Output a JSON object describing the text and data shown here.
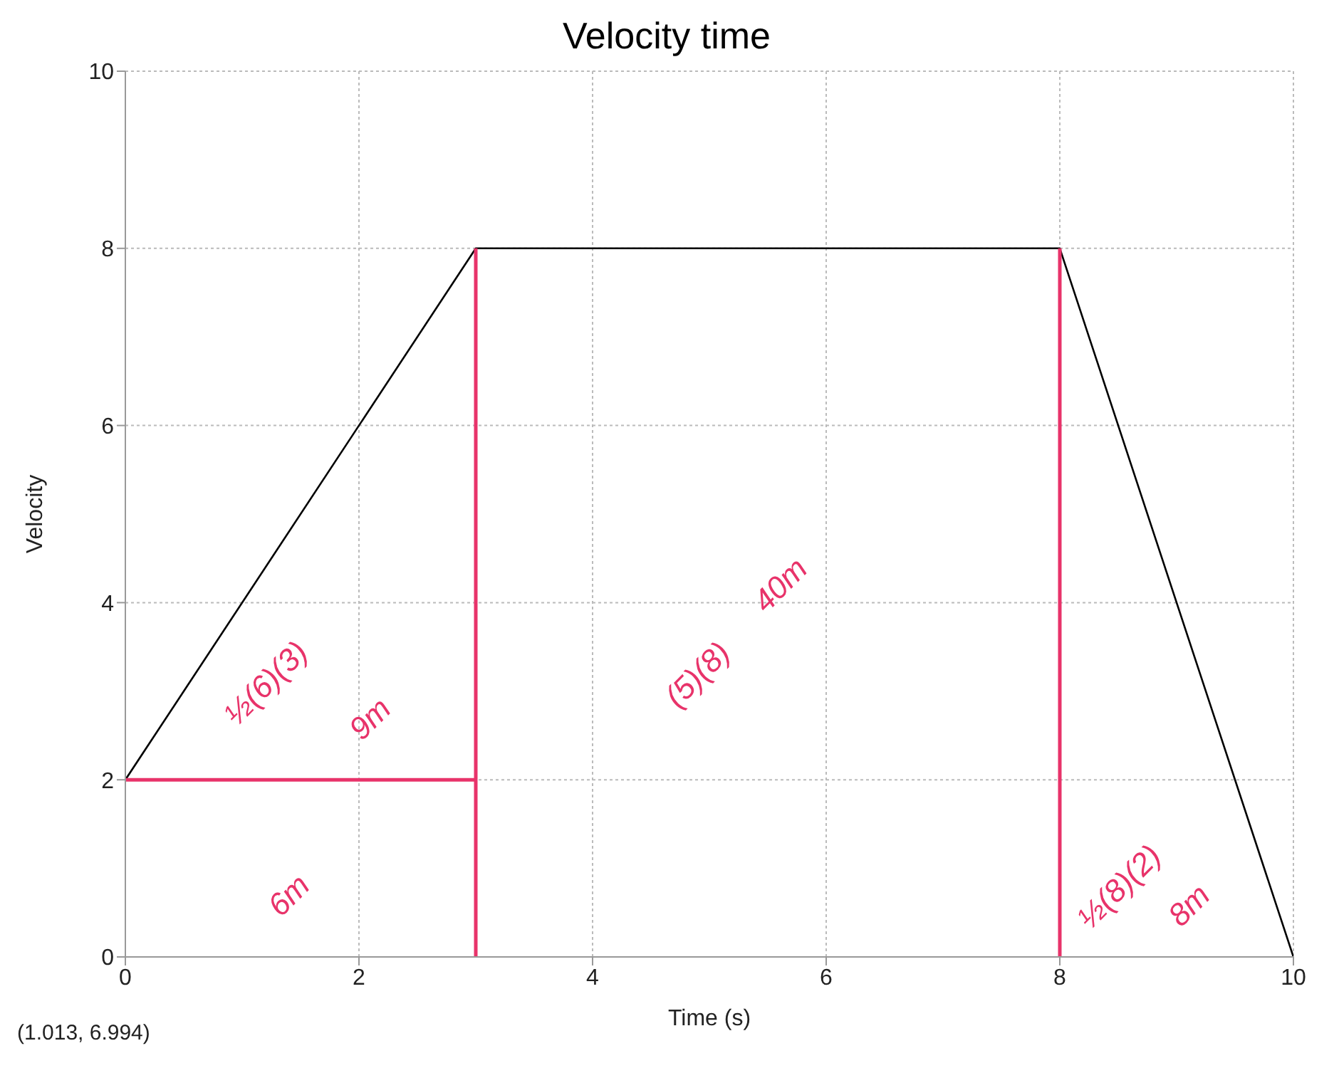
{
  "chart_data": {
    "type": "line",
    "title": "Velocity time",
    "xlabel": "Time (s)",
    "ylabel": "Velocity",
    "xlim": [
      0,
      10
    ],
    "xticks": [
      0,
      2,
      4,
      6,
      8,
      10
    ],
    "ylim": [
      0,
      10
    ],
    "yticks": [
      0,
      2,
      4,
      6,
      8,
      10
    ],
    "grid": true,
    "marker": "none",
    "line_style": "solid",
    "series": [
      {
        "color": "#000000",
        "x": [
          0,
          3,
          8,
          10
        ],
        "values": [
          2,
          8,
          8,
          0
        ]
      },
      {
        "color": "#e8336a",
        "x": [
          0,
          3
        ],
        "values": [
          2,
          2
        ]
      },
      {
        "color": "#e8336a",
        "x": [
          3,
          3
        ],
        "values": [
          0,
          8
        ]
      },
      {
        "color": "#e8336a",
        "x": [
          8,
          8
        ],
        "values": [
          0,
          8
        ]
      }
    ],
    "annotations": [
      "½(6)(3)",
      "9m",
      "6m",
      "(5)(8)",
      "40m",
      "½(8)(2)",
      "8m",
      "(1.013, 6.994)"
    ]
  }
}
